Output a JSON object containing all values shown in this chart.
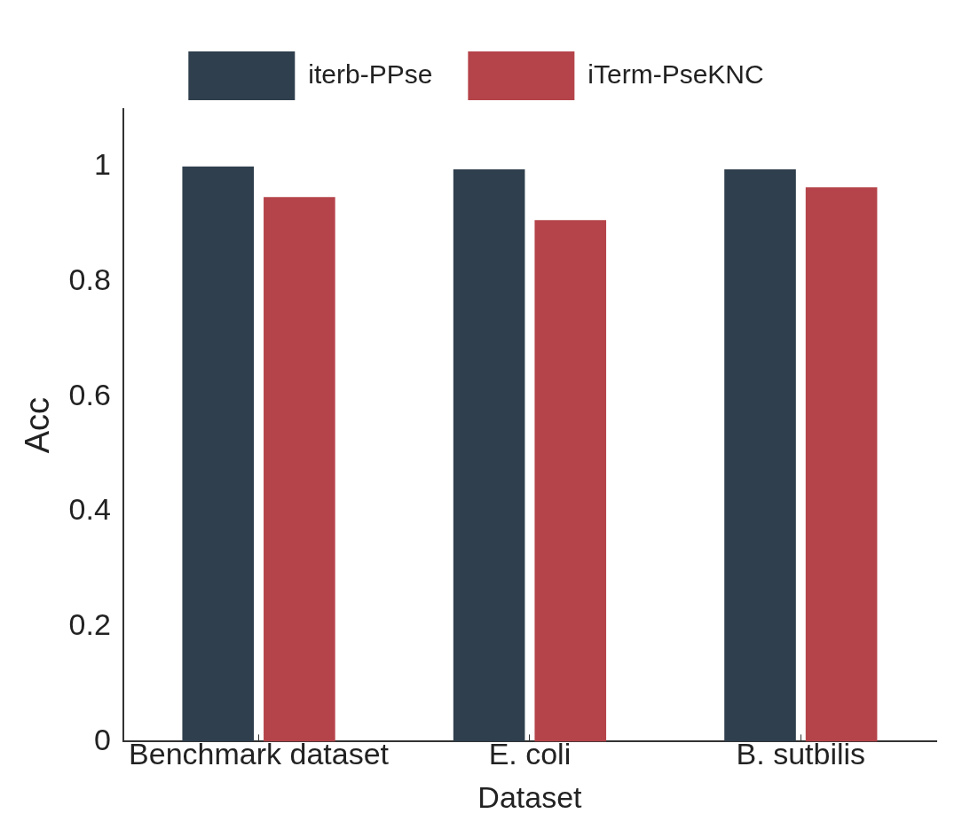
{
  "chart_data": {
    "type": "bar",
    "xlabel": "Dataset",
    "ylabel": "Acc",
    "categories": [
      "Benchmark dataset",
      "E. coli",
      "B. sutbilis"
    ],
    "series": [
      {
        "name": "iterb-PPse",
        "color": "#2f3f4d",
        "values": [
          1.0,
          0.995,
          0.995
        ]
      },
      {
        "name": "iTerm-PseKNC",
        "color": "#b5444a",
        "values": [
          0.947,
          0.907,
          0.964
        ]
      }
    ],
    "ylim": [
      0,
      1.1
    ],
    "yticks": [
      0,
      0.2,
      0.4,
      0.6,
      0.8,
      1
    ],
    "grid": false,
    "legend": "top"
  }
}
